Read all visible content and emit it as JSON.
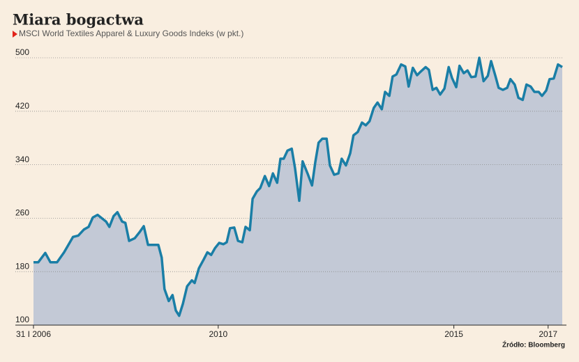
{
  "chart_data": {
    "type": "line",
    "title": "Miara bogactwa",
    "subtitle": "MSCI World Textiles Apparel & Luxury Goods Indeks (w pkt.)",
    "source": "Źródło: Bloomberg",
    "color": "#1a7ea6",
    "fill": "#c3c9d6",
    "grid": true,
    "x": [
      2006.08,
      2006.18,
      2006.33,
      2006.44,
      2006.58,
      2006.73,
      2006.92,
      2007.03,
      2007.15,
      2007.25,
      2007.34,
      2007.44,
      2007.62,
      2007.69,
      2007.78,
      2007.86,
      2007.96,
      2008.03,
      2008.11,
      2008.23,
      2008.33,
      2008.42,
      2008.51,
      2008.63,
      2008.73,
      2008.8,
      2008.86,
      2008.95,
      2009.03,
      2009.1,
      2009.17,
      2009.25,
      2009.34,
      2009.44,
      2009.5,
      2009.59,
      2009.69,
      2009.77,
      2009.85,
      2009.93,
      2010.02,
      2010.11,
      2010.18,
      2010.25,
      2010.34,
      2010.42,
      2010.51,
      2010.58,
      2010.67,
      2010.73,
      2010.82,
      2010.89,
      2010.99,
      2011.08,
      2011.16,
      2011.25,
      2011.32,
      2011.39,
      2011.47,
      2011.56,
      2011.63,
      2011.72,
      2011.79,
      2011.9,
      2011.99,
      2012.06,
      2012.13,
      2012.21,
      2012.3,
      2012.37,
      2012.46,
      2012.55,
      2012.62,
      2012.71,
      2012.8,
      2012.87,
      2012.96,
      2013.05,
      2013.13,
      2013.21,
      2013.3,
      2013.38,
      2013.47,
      2013.54,
      2013.63,
      2013.7,
      2013.78,
      2013.88,
      2013.97,
      2014.04,
      2014.13,
      2014.22,
      2014.29,
      2014.4,
      2014.47,
      2014.55,
      2014.63,
      2014.71,
      2014.8,
      2014.89,
      2014.96,
      2015.05,
      2015.12,
      2015.21,
      2015.29,
      2015.37,
      2015.46,
      2015.54,
      2015.63,
      2015.72,
      2015.79,
      2015.88,
      2015.95,
      2016.04,
      2016.13,
      2016.2,
      2016.29,
      2016.37,
      2016.46,
      2016.54,
      2016.63,
      2016.71,
      2016.8,
      2016.87,
      2016.96,
      2017.03,
      2017.12,
      2017.21,
      2017.3
    ],
    "values": [
      194,
      194,
      208,
      194,
      194,
      209,
      232,
      234,
      243,
      247,
      261,
      265,
      255,
      247,
      263,
      269,
      255,
      253,
      226,
      230,
      239,
      248,
      220,
      220,
      220,
      201,
      154,
      136,
      145,
      122,
      114,
      132,
      158,
      167,
      163,
      185,
      198,
      209,
      205,
      215,
      223,
      221,
      224,
      245,
      246,
      226,
      224,
      247,
      242,
      289,
      300,
      305,
      323,
      308,
      327,
      313,
      349,
      349,
      361,
      364,
      335,
      286,
      345,
      326,
      309,
      344,
      373,
      379,
      379,
      339,
      325,
      327,
      349,
      339,
      357,
      384,
      389,
      403,
      399,
      405,
      425,
      433,
      423,
      449,
      443,
      472,
      475,
      490,
      487,
      457,
      485,
      474,
      479,
      486,
      482,
      452,
      455,
      445,
      454,
      486,
      470,
      456,
      488,
      477,
      481,
      471,
      472,
      500,
      465,
      473,
      495,
      473,
      455,
      452,
      455,
      468,
      460,
      440,
      437,
      460,
      457,
      449,
      449,
      443,
      451,
      468,
      469,
      490,
      486
    ],
    "xlim": [
      2006.08,
      2017.3
    ],
    "xticks": [
      {
        "value": 2006.08,
        "label": "31 I 2006"
      },
      2010,
      2015,
      2017
    ],
    "ylim": [
      100,
      500
    ],
    "yticks": [
      100,
      180,
      260,
      340,
      420,
      500
    ]
  }
}
